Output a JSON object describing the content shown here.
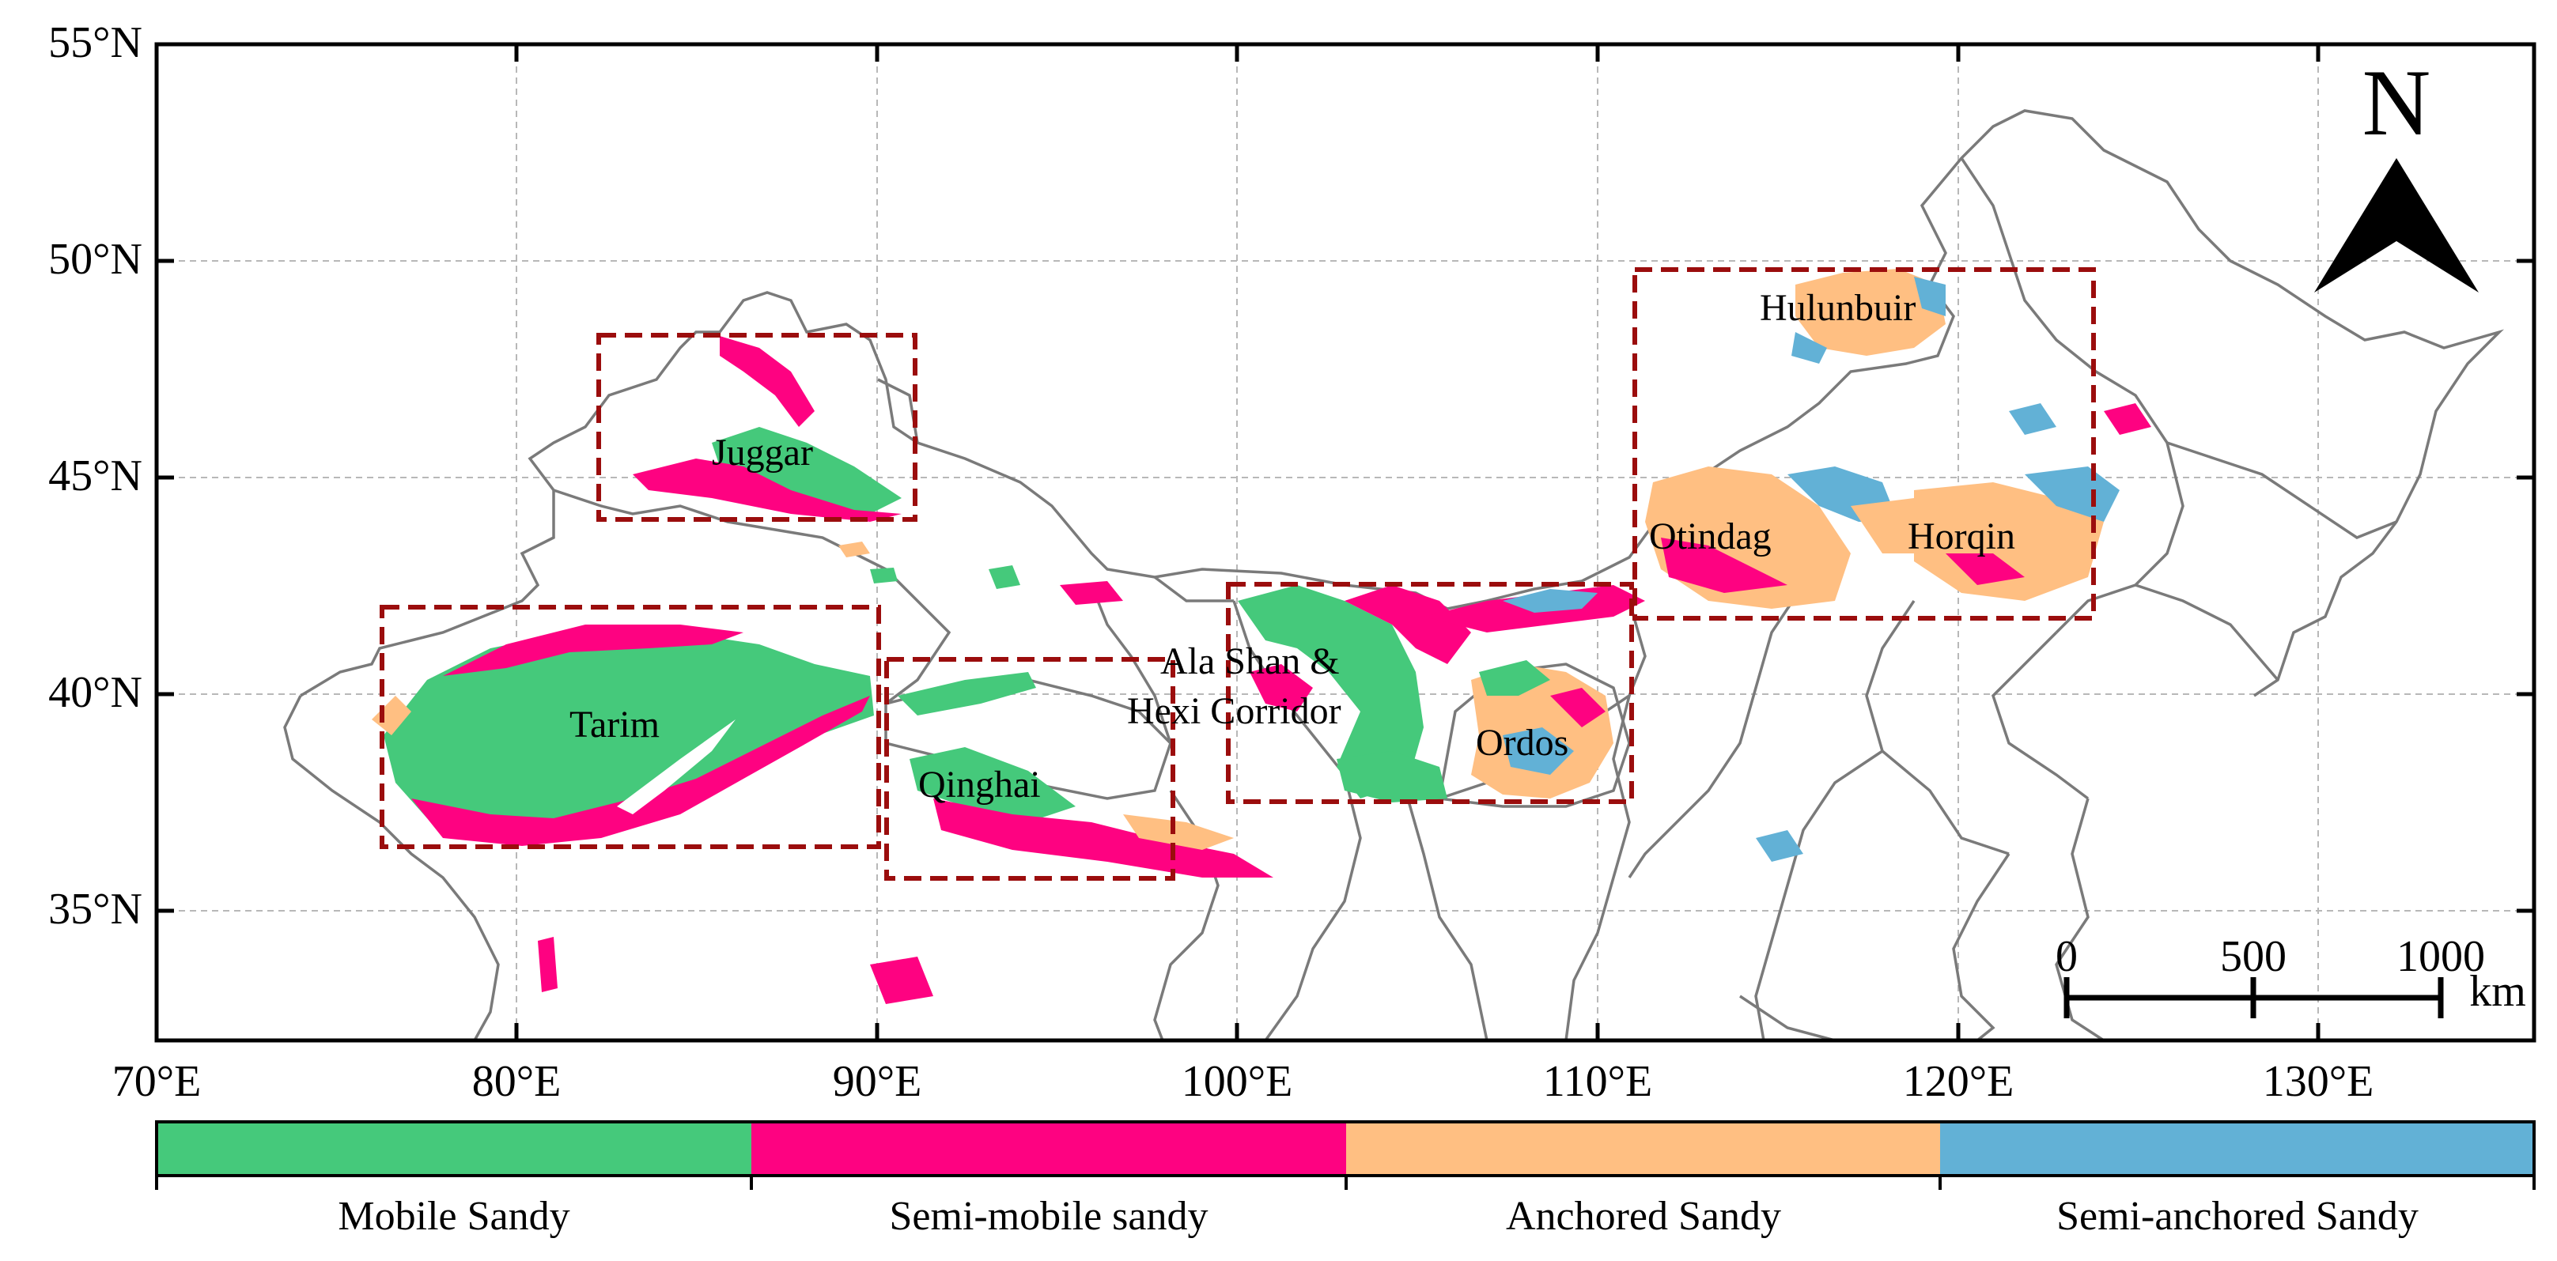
{
  "map": {
    "y_ticks": [
      "55°N",
      "50°N",
      "45°N",
      "40°N",
      "35°N"
    ],
    "x_ticks": [
      "70°E",
      "80°E",
      "90°E",
      "100°E",
      "110°E",
      "120°E",
      "130°E"
    ],
    "regions": [
      "Juggar",
      "Tarim",
      "Qinghai",
      "Ala Shan &",
      "Hexi Corridor",
      "Ordos",
      "Hulunbuir",
      "Otindag",
      "Horqin"
    ],
    "north_arrow": "N",
    "scale_bar": {
      "labels": [
        "0",
        "500",
        "1000"
      ],
      "unit": "km"
    }
  },
  "legend": {
    "items": [
      {
        "label": "Mobile Sandy",
        "color": "#45c97b"
      },
      {
        "label": "Semi-mobile sandy",
        "color": "#fe0281"
      },
      {
        "label": "Anchored Sandy",
        "color": "#ffbf82"
      },
      {
        "label": "Semi-anchored Sandy",
        "color": "#62b1d6"
      }
    ]
  },
  "colors": {
    "box": "#9b0d0d",
    "border": "#7a7a7a",
    "grid": "#b8b8b8"
  }
}
